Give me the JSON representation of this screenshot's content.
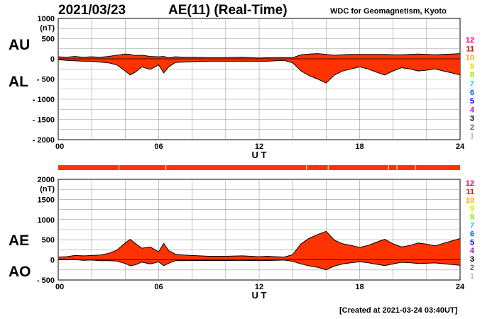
{
  "header": {
    "date": "2021/03/23",
    "index_title": "AE(11) (Real-Time)",
    "credit": "WDC for Geomagnetism, Kyoto"
  },
  "footer": {
    "created": "[Created at 2021-03-24 03:40UT]"
  },
  "colors": {
    "fill": "#ff3300",
    "outline": "#000000",
    "grid": "#999999",
    "station_gap": "#ffff66"
  },
  "station_scale": [
    {
      "label": "12",
      "color": "#ff0066"
    },
    {
      "label": "11",
      "color": "#ee0000"
    },
    {
      "label": "10",
      "color": "#ffaa00"
    },
    {
      "label": "9",
      "color": "#dddd00"
    },
    {
      "label": "8",
      "color": "#88ee00"
    },
    {
      "label": "7",
      "color": "#00dddd"
    },
    {
      "label": "6",
      "color": "#0066ff"
    },
    {
      "label": "5",
      "color": "#0000cc"
    },
    {
      "label": "4",
      "color": "#cc00cc"
    },
    {
      "label": "3",
      "color": "#000000"
    },
    {
      "label": "2",
      "color": "#666666"
    },
    {
      "label": "1",
      "color": "#bbbbbb"
    }
  ],
  "chart_data": [
    {
      "type": "area",
      "name": "AU/AL",
      "upper_label": "AU",
      "lower_label": "AL",
      "unit": "(nT)",
      "xlabel": "U T",
      "xlim": [
        0,
        24
      ],
      "ylim": [
        -2000,
        1000
      ],
      "x_ticks": [
        "00",
        "06",
        "12",
        "18",
        "24"
      ],
      "y_ticks": [
        "1000",
        "500",
        "0",
        "- 500",
        "- 1000",
        "- 1500",
        "- 2000"
      ],
      "x": [
        0,
        0.5,
        1,
        1.5,
        2,
        2.5,
        3,
        3.5,
        4,
        4.3,
        4.6,
        5,
        5.5,
        6,
        6.3,
        6.6,
        7,
        7.5,
        8,
        9,
        10,
        11,
        12,
        12.5,
        13,
        13.5,
        14,
        14.5,
        15,
        15.5,
        16,
        16.5,
        17,
        17.5,
        18,
        18.5,
        19,
        19.5,
        20,
        20.5,
        21,
        21.5,
        22,
        22.5,
        23,
        23.5,
        24
      ],
      "series": [
        {
          "name": "AU",
          "values": [
            50,
            40,
            60,
            40,
            50,
            40,
            60,
            90,
            120,
            110,
            80,
            90,
            60,
            50,
            60,
            30,
            50,
            40,
            40,
            30,
            30,
            40,
            20,
            30,
            30,
            30,
            30,
            100,
            120,
            130,
            110,
            90,
            100,
            110,
            110,
            110,
            110,
            110,
            100,
            100,
            110,
            120,
            110,
            100,
            110,
            120,
            130
          ]
        },
        {
          "name": "AL",
          "values": [
            -20,
            -40,
            -50,
            -60,
            -60,
            -80,
            -100,
            -150,
            -300,
            -400,
            -330,
            -200,
            -260,
            -150,
            -350,
            -200,
            -90,
            -80,
            -70,
            -60,
            -60,
            -60,
            -60,
            -60,
            -50,
            -40,
            -100,
            -300,
            -420,
            -500,
            -600,
            -400,
            -300,
            -250,
            -200,
            -250,
            -330,
            -400,
            -300,
            -220,
            -250,
            -300,
            -280,
            -250,
            -300,
            -350,
            -400
          ]
        }
      ]
    },
    {
      "type": "area",
      "name": "AE/AO",
      "upper_label": "AE",
      "lower_label": "AO",
      "unit": "(nT)",
      "xlabel": "U T",
      "xlim": [
        0,
        24
      ],
      "ylim": [
        -500,
        2000
      ],
      "x_ticks": [
        "00",
        "06",
        "12",
        "18",
        "24"
      ],
      "y_ticks": [
        "2000",
        "1500",
        "1000",
        "500",
        "0",
        "- 500"
      ],
      "x": [
        0,
        0.5,
        1,
        1.5,
        2,
        2.5,
        3,
        3.5,
        4,
        4.3,
        4.6,
        5,
        5.5,
        6,
        6.3,
        6.6,
        7,
        7.5,
        8,
        9,
        10,
        11,
        12,
        12.5,
        13,
        13.5,
        14,
        14.5,
        15,
        15.5,
        16,
        16.5,
        17,
        17.5,
        18,
        18.5,
        19,
        19.5,
        20,
        20.5,
        21,
        21.5,
        22,
        22.5,
        23,
        23.5,
        24
      ],
      "series": [
        {
          "name": "AE",
          "values": [
            70,
            80,
            110,
            100,
            110,
            120,
            160,
            240,
            420,
            510,
            410,
            290,
            320,
            200,
            410,
            230,
            140,
            120,
            110,
            90,
            90,
            100,
            80,
            90,
            80,
            70,
            130,
            400,
            540,
            630,
            710,
            490,
            400,
            360,
            310,
            360,
            440,
            510,
            400,
            320,
            360,
            420,
            390,
            350,
            410,
            470,
            530
          ]
        },
        {
          "name": "AO",
          "values": [
            15,
            0,
            5,
            -10,
            -5,
            -20,
            -20,
            -30,
            -90,
            -145,
            -125,
            -55,
            -100,
            -50,
            -145,
            -85,
            -20,
            -20,
            -15,
            -15,
            -15,
            -10,
            -20,
            -15,
            -10,
            -5,
            -35,
            -100,
            -150,
            -185,
            -245,
            -155,
            -100,
            -70,
            -45,
            -70,
            -110,
            -145,
            -100,
            -60,
            -70,
            -90,
            -85,
            -75,
            -95,
            -115,
            -135
          ]
        }
      ]
    }
  ]
}
